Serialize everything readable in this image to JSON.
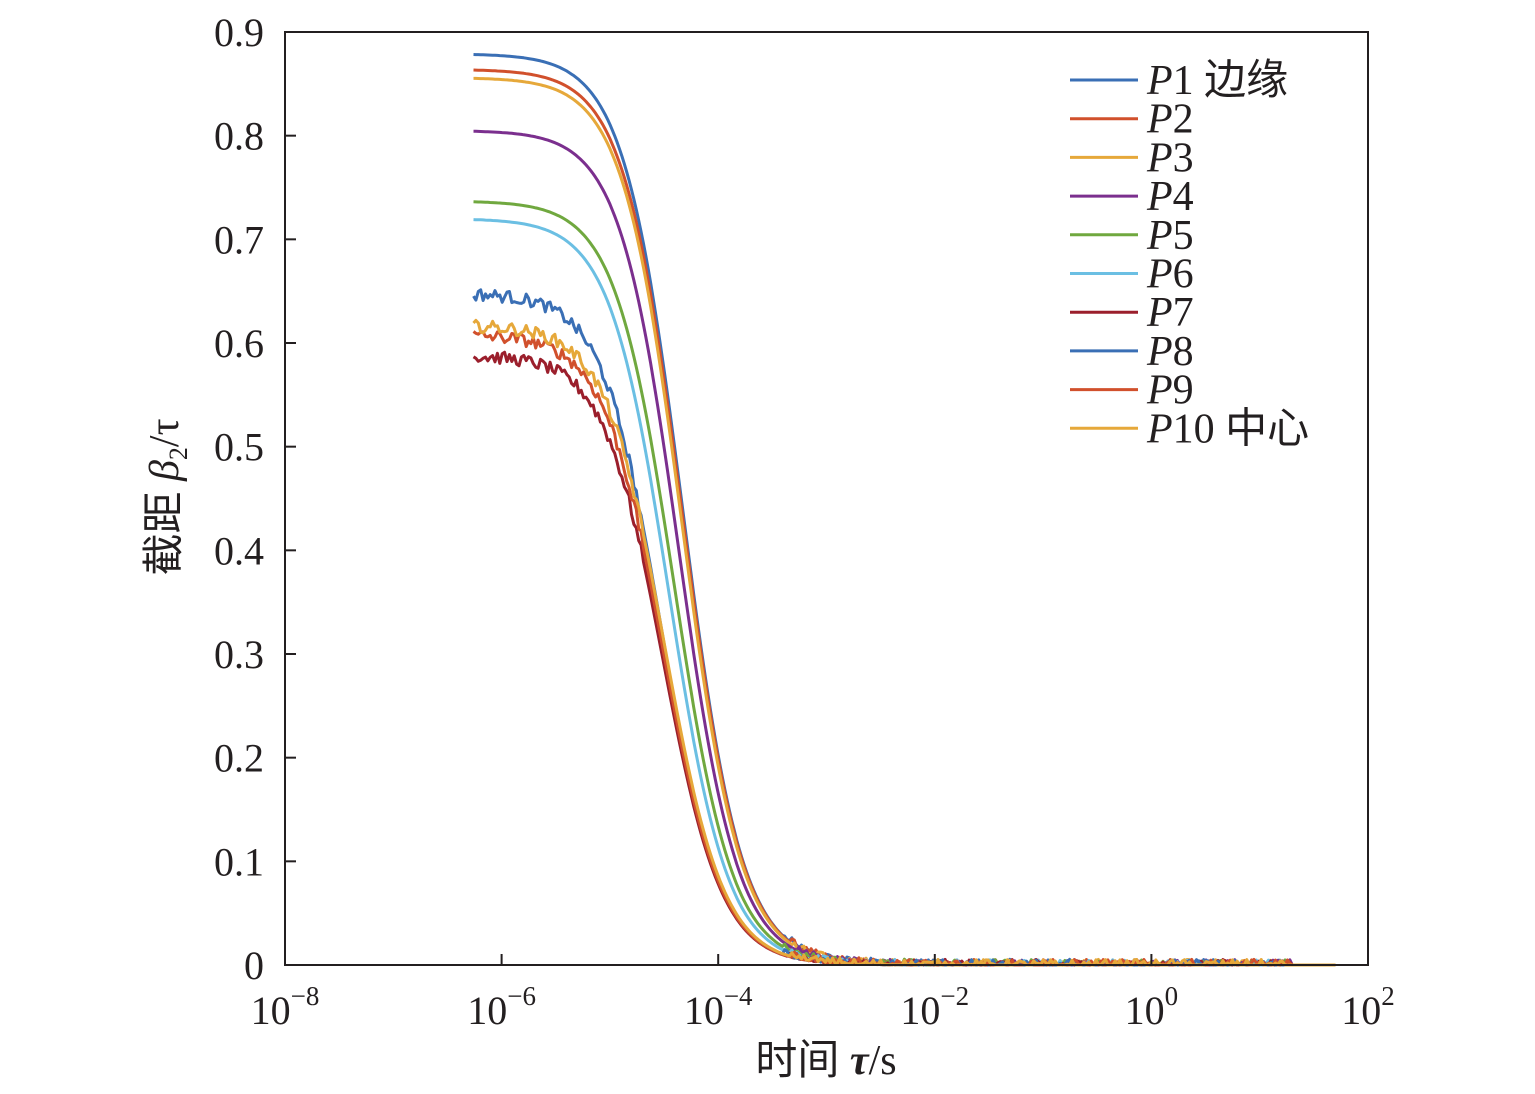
{
  "chart_data": {
    "type": "line",
    "xscale": "log",
    "xlim": [
      1e-08,
      100
    ],
    "ylim": [
      0,
      0.9
    ],
    "grid": false,
    "legend_position": "top-right",
    "xlabel": {
      "prefix": "时间 ",
      "symbol": "τ",
      "unit": "/s"
    },
    "ylabel": {
      "prefix": "截距 ",
      "symbol": "β",
      "sub": "2",
      "unit": "/τ"
    },
    "x_ticks": [
      {
        "value": 1e-08,
        "base": "10",
        "exp": "−8"
      },
      {
        "value": 1e-06,
        "base": "10",
        "exp": "−6"
      },
      {
        "value": 0.0001,
        "base": "10",
        "exp": "−4"
      },
      {
        "value": 0.01,
        "base": "10",
        "exp": "−2"
      },
      {
        "value": 1,
        "base": "10",
        "exp": "0"
      },
      {
        "value": 100,
        "base": "10",
        "exp": "2"
      }
    ],
    "y_ticks": [
      {
        "value": 0,
        "label": "0"
      },
      {
        "value": 0.1,
        "label": "0.1"
      },
      {
        "value": 0.2,
        "label": "0.2"
      },
      {
        "value": 0.3,
        "label": "0.3"
      },
      {
        "value": 0.4,
        "label": "0.4"
      },
      {
        "value": 0.5,
        "label": "0.5"
      },
      {
        "value": 0.6,
        "label": "0.6"
      },
      {
        "value": 0.7,
        "label": "0.7"
      },
      {
        "value": 0.8,
        "label": "0.8"
      },
      {
        "value": 0.9,
        "label": "0.9"
      }
    ],
    "curve_model": "beta(tau) = b0 / (1 + (tau/tau_c)^n), plotted for tau from 5.5e-7 s to 50 s; small fluctuations near 0 beyond 1e-3 s",
    "series": [
      {
        "label": "P",
        "num": "1",
        "suffix": " 边缘",
        "color": "#3a6fb5",
        "b0": 0.879,
        "tau_c": 4.7e-05,
        "n": 1.6
      },
      {
        "label": "P",
        "num": "2",
        "suffix": "",
        "color": "#d1502c",
        "b0": 0.864,
        "tau_c": 4.7e-05,
        "n": 1.6
      },
      {
        "label": "P",
        "num": "3",
        "suffix": "",
        "color": "#e6a83a",
        "b0": 0.856,
        "tau_c": 4.6e-05,
        "n": 1.6
      },
      {
        "label": "P",
        "num": "4",
        "suffix": "",
        "color": "#7b2f8e",
        "b0": 0.805,
        "tau_c": 4.3e-05,
        "n": 1.6
      },
      {
        "label": "P",
        "num": "5",
        "suffix": "",
        "color": "#70a83f",
        "b0": 0.737,
        "tau_c": 3.9e-05,
        "n": 1.6
      },
      {
        "label": "P",
        "num": "6",
        "suffix": "",
        "color": "#6bbfe3",
        "b0": 0.72,
        "tau_c": 3.5e-05,
        "n": 1.6
      },
      {
        "label": "P",
        "num": "7",
        "suffix": "",
        "color": "#9b1f2c",
        "b0": 0.588,
        "tau_c": 3.1e-05,
        "n": 1.6
      },
      {
        "label": "P",
        "num": "8",
        "suffix": "",
        "color": "#3a6fb5",
        "b0": 0.648,
        "tau_c": 3e-05,
        "n": 1.6
      },
      {
        "label": "P",
        "num": "9",
        "suffix": "",
        "color": "#d1502c",
        "b0": 0.608,
        "tau_c": 3.1e-05,
        "n": 1.6
      },
      {
        "label": "P",
        "num": "10",
        "suffix": " 中心",
        "color": "#e6a83a",
        "b0": 0.617,
        "tau_c": 3.2e-05,
        "n": 1.6
      }
    ]
  }
}
